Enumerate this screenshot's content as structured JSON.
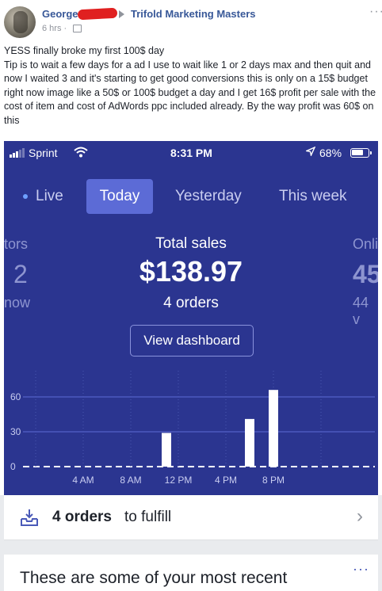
{
  "post": {
    "author": "George",
    "group": "Trifold Marketing Masters",
    "time": "6 hrs ·",
    "menu": "···",
    "lines": [
      "YESS finally broke my first 100$ day",
      "Tip is to wait a few days for a ad I use to wait like 1 or 2 days max and then quit and now I waited 3 and it's starting to get good conversions this is only on a 15$ budget right now image like a 50$ or 100$ budget a day and I get 16$ profit per sale with the cost of item and cost of AdWords ppc included already. By the way profit was 60$ on this"
    ]
  },
  "phone": {
    "status": {
      "carrier": "Sprint",
      "wifi_icon": "wifi-icon",
      "time": "8:31 PM",
      "location_icon": "location-arrow-icon",
      "battery": "68%",
      "battery_level": 0.68
    },
    "tabs": [
      {
        "label": "Live"
      },
      {
        "label": "Today",
        "selected": true
      },
      {
        "label": "Yesterday"
      },
      {
        "label": "This week"
      }
    ],
    "left_metric": {
      "label": "tors",
      "value": "2",
      "sub": "now"
    },
    "total_sales": {
      "label": "Total sales",
      "value": "$138.97",
      "orders": "4 orders"
    },
    "right_metric": {
      "label": "Onli",
      "value": "45",
      "sub": "44 v"
    },
    "view_dashboard": "View dashboard"
  },
  "chart_data": {
    "type": "bar",
    "yticks": [
      "60",
      "30",
      "0"
    ],
    "ylim": [
      0,
      70
    ],
    "xticks": [
      "4 AM",
      "8 AM",
      "12 PM",
      "4 PM",
      "8 PM"
    ],
    "x_hours": [
      11,
      18,
      20
    ],
    "values": [
      29,
      41,
      66
    ],
    "bar_color": "#ffffff",
    "grid_color": "#5c6bd6"
  },
  "fulfill": {
    "bold": "4 orders",
    "rest": "to fulfill",
    "icon": "inbox-download-icon"
  },
  "recent": {
    "title": "These are some of your most recent",
    "menu": "···"
  }
}
